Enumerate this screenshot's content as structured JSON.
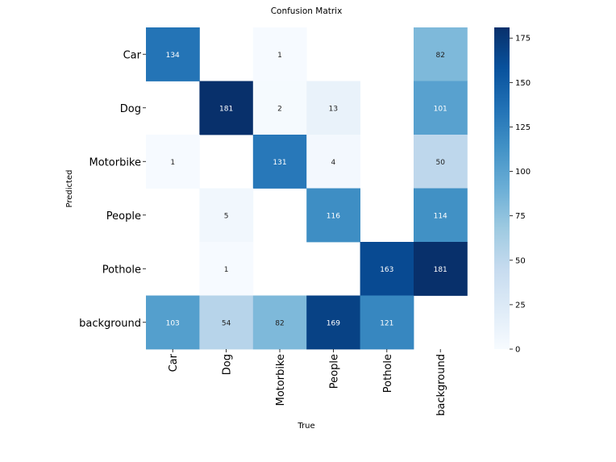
{
  "chart_data": {
    "type": "heatmap",
    "title": "Confusion Matrix",
    "xlabel": "True",
    "ylabel": "Predicted",
    "x_categories": [
      "Car",
      "Dog",
      "Motorbike",
      "People",
      "Pothole",
      "background"
    ],
    "y_categories": [
      "Car",
      "Dog",
      "Motorbike",
      "People",
      "Pothole",
      "background"
    ],
    "values": [
      [
        134,
        null,
        1,
        null,
        null,
        82
      ],
      [
        null,
        181,
        2,
        13,
        null,
        101
      ],
      [
        1,
        null,
        131,
        4,
        null,
        50
      ],
      [
        null,
        5,
        null,
        116,
        null,
        114
      ],
      [
        null,
        1,
        null,
        null,
        163,
        181
      ],
      [
        103,
        54,
        82,
        169,
        121,
        null
      ]
    ],
    "colorbar": {
      "min": 0,
      "max": 181,
      "ticks": [
        0,
        25,
        50,
        75,
        100,
        125,
        150,
        175
      ]
    },
    "colormap": [
      "#f7fbff",
      "#deebf7",
      "#c6dbef",
      "#9ecae1",
      "#6baed6",
      "#4292c6",
      "#2171b5",
      "#08519c",
      "#08306b"
    ]
  }
}
